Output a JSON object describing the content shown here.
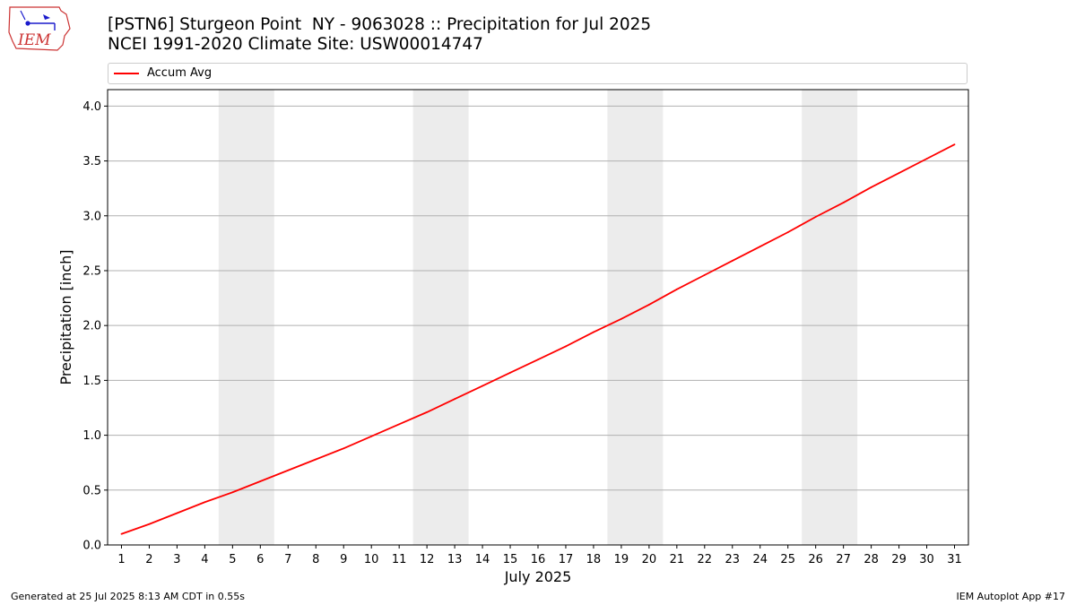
{
  "header": {
    "title_line1": "[PSTN6] Sturgeon Point  NY - 9063028 :: Precipitation for Jul 2025",
    "title_line2": "NCEI 1991-2020 Climate Site: USW00014747",
    "logo_text": "IEM"
  },
  "footer": {
    "generated": "Generated at 25 Jul 2025 8:13 AM CDT in 0.55s",
    "app": "IEM Autoplot App #17"
  },
  "colors": {
    "series": "#ff0000",
    "weekend_band": "#ececec",
    "grid": "#b0b0b0",
    "logo_outline": "#cc3333",
    "logo_icon": "#1a1acc"
  },
  "chart_data": {
    "type": "line",
    "title": "[PSTN6] Sturgeon Point  NY - 9063028 :: Precipitation for Jul 2025",
    "xlabel": "July 2025",
    "ylabel": "Precipitation [inch]",
    "x": [
      1,
      2,
      3,
      4,
      5,
      6,
      7,
      8,
      9,
      10,
      11,
      12,
      13,
      14,
      15,
      16,
      17,
      18,
      19,
      20,
      21,
      22,
      23,
      24,
      25,
      26,
      27,
      28,
      29,
      30,
      31
    ],
    "xtick_labels": [
      "1",
      "2",
      "3",
      "4",
      "5",
      "6",
      "7",
      "8",
      "9",
      "10",
      "11",
      "12",
      "13",
      "14",
      "15",
      "16",
      "17",
      "18",
      "19",
      "20",
      "21",
      "22",
      "23",
      "24",
      "25",
      "26",
      "27",
      "28",
      "29",
      "30",
      "31"
    ],
    "yticks": [
      "0.0",
      "0.5",
      "1.0",
      "1.5",
      "2.0",
      "2.5",
      "3.0",
      "3.5",
      "4.0"
    ],
    "xlim": [
      0.5,
      31.5
    ],
    "ylim": [
      0,
      4.15
    ],
    "grid": "horizontal",
    "legend_position": "top",
    "shaded_weekends": [
      [
        5,
        6
      ],
      [
        12,
        13
      ],
      [
        19,
        20
      ],
      [
        26,
        27
      ]
    ],
    "series": [
      {
        "name": "Accum Avg",
        "color": "#ff0000",
        "values": [
          0.1,
          0.19,
          0.29,
          0.39,
          0.48,
          0.58,
          0.68,
          0.78,
          0.88,
          0.99,
          1.1,
          1.21,
          1.33,
          1.45,
          1.57,
          1.69,
          1.81,
          1.94,
          2.06,
          2.19,
          2.33,
          2.46,
          2.59,
          2.72,
          2.85,
          2.99,
          3.12,
          3.26,
          3.39,
          3.52,
          3.65
        ]
      }
    ]
  }
}
